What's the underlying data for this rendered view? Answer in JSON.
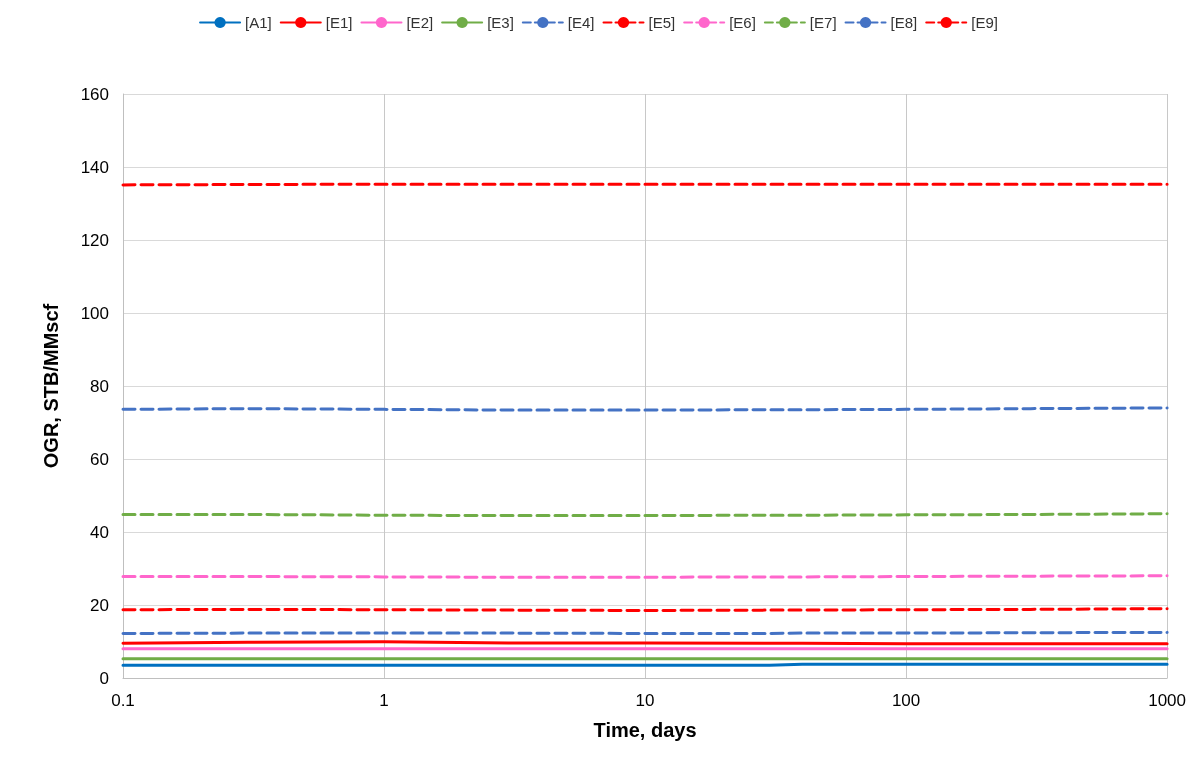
{
  "chart_data": {
    "type": "line",
    "xlabel": "Time, days",
    "ylabel": "OGR, STB/MMscf",
    "x": [
      0.1,
      0.3,
      1,
      3,
      10,
      30,
      40,
      100,
      300,
      1000
    ],
    "xlim": [
      0.1,
      1000
    ],
    "xticks": [
      0.1,
      1,
      10,
      100,
      1000
    ],
    "log": "x",
    "ylim": [
      0,
      160
    ],
    "yticks": [
      0,
      20,
      40,
      60,
      80,
      100,
      120,
      140,
      160
    ],
    "grid": true,
    "legend": "top",
    "marker": "none",
    "series": [
      {
        "name": "[A1]",
        "color": "#0070c0",
        "line_style": "solid",
        "values": [
          3.5,
          3.5,
          3.5,
          3.5,
          3.5,
          3.5,
          3.8,
          3.8,
          3.8,
          3.8
        ]
      },
      {
        "name": "[E1]",
        "color": "#ff0000",
        "line_style": "solid",
        "values": [
          9.5,
          9.8,
          9.9,
          9.6,
          9.6,
          9.5,
          9.5,
          9.4,
          9.4,
          9.4
        ]
      },
      {
        "name": "[E2]",
        "color": "#ff66cc",
        "line_style": "solid",
        "values": [
          8.0,
          8.0,
          8.0,
          8.0,
          8.0,
          8.0,
          8.0,
          8.0,
          8.0,
          8.0
        ]
      },
      {
        "name": "[E3]",
        "color": "#70ad47",
        "line_style": "solid",
        "values": [
          5.3,
          5.3,
          5.3,
          5.3,
          5.3,
          5.3,
          5.3,
          5.3,
          5.3,
          5.3
        ]
      },
      {
        "name": "[E4]",
        "color": "#4472c4",
        "line_style": "dashed",
        "values": [
          12.2,
          12.3,
          12.3,
          12.3,
          12.2,
          12.2,
          12.3,
          12.3,
          12.4,
          12.5
        ]
      },
      {
        "name": "[E5]",
        "color": "#ff0000",
        "line_style": "dashed",
        "values": [
          18.7,
          18.8,
          18.7,
          18.6,
          18.5,
          18.6,
          18.6,
          18.7,
          18.8,
          19.0
        ]
      },
      {
        "name": "[E6]",
        "color": "#ff66cc",
        "line_style": "dashed",
        "values": [
          27.8,
          27.8,
          27.7,
          27.6,
          27.6,
          27.7,
          27.7,
          27.8,
          27.9,
          28.0
        ]
      },
      {
        "name": "[E7]",
        "color": "#70ad47",
        "line_style": "dashed",
        "values": [
          44.8,
          44.8,
          44.6,
          44.5,
          44.5,
          44.6,
          44.6,
          44.7,
          44.8,
          45.0
        ]
      },
      {
        "name": "[E8]",
        "color": "#4472c4",
        "line_style": "dashed",
        "values": [
          73.6,
          73.8,
          73.6,
          73.4,
          73.4,
          73.5,
          73.5,
          73.6,
          73.8,
          74.0
        ]
      },
      {
        "name": "[E9]",
        "color": "#ff0000",
        "line_style": "dashed",
        "values": [
          135.1,
          135.2,
          135.3,
          135.3,
          135.3,
          135.3,
          135.3,
          135.3,
          135.3,
          135.3
        ]
      }
    ]
  }
}
